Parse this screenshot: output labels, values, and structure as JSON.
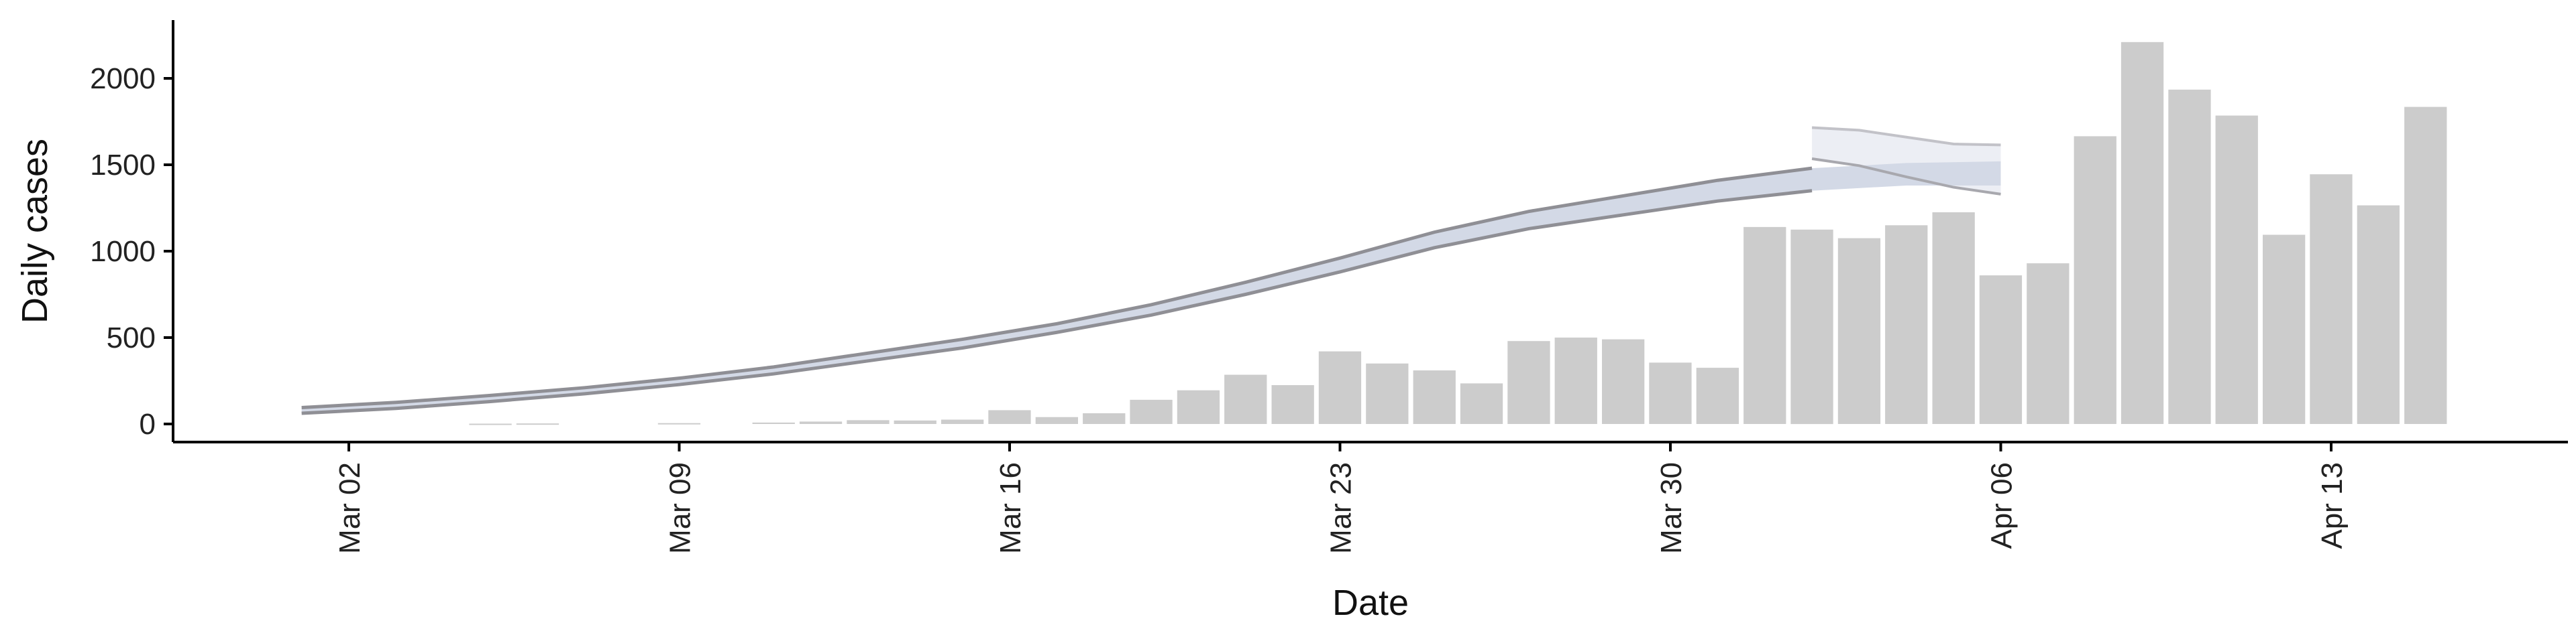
{
  "chart_data": {
    "type": "bar",
    "title": "",
    "xlabel": "Date",
    "ylabel": "Daily cases",
    "x_ticks": [
      {
        "date": "2020-03-02",
        "label": "Mar 02"
      },
      {
        "date": "2020-03-09",
        "label": "Mar 09"
      },
      {
        "date": "2020-03-16",
        "label": "Mar 16"
      },
      {
        "date": "2020-03-23",
        "label": "Mar 23"
      },
      {
        "date": "2020-03-30",
        "label": "Mar 30"
      },
      {
        "date": "2020-04-06",
        "label": "Apr 06"
      },
      {
        "date": "2020-04-13",
        "label": "Apr 13"
      }
    ],
    "y_ticks": [
      0,
      500,
      1000,
      1500,
      2000
    ],
    "xlim": [
      "2020-02-26",
      "2020-04-20"
    ],
    "ylim": [
      -100,
      2330
    ],
    "grid": false,
    "colors": {
      "bars": "#cccccc",
      "band_outer": "#eceef4",
      "band_inner": "#d3d9e6",
      "line_upper": "#8f8f95",
      "line_lower": "#8f8f95",
      "line_upper_forecast": "#c2c2c8",
      "line_lower_forecast": "#a8a8ae",
      "axis": "#000000"
    },
    "bars": [
      {
        "date": "2020-03-05",
        "value": 2
      },
      {
        "date": "2020-03-06",
        "value": 3
      },
      {
        "date": "2020-03-09",
        "value": 5
      },
      {
        "date": "2020-03-11",
        "value": 8
      },
      {
        "date": "2020-03-12",
        "value": 14
      },
      {
        "date": "2020-03-13",
        "value": 22
      },
      {
        "date": "2020-03-14",
        "value": 20
      },
      {
        "date": "2020-03-15",
        "value": 25
      },
      {
        "date": "2020-03-16",
        "value": 80
      },
      {
        "date": "2020-03-17",
        "value": 40
      },
      {
        "date": "2020-03-18",
        "value": 62
      },
      {
        "date": "2020-03-19",
        "value": 140
      },
      {
        "date": "2020-03-20",
        "value": 195
      },
      {
        "date": "2020-03-21",
        "value": 285
      },
      {
        "date": "2020-03-22",
        "value": 225
      },
      {
        "date": "2020-03-23",
        "value": 420
      },
      {
        "date": "2020-03-24",
        "value": 350
      },
      {
        "date": "2020-03-25",
        "value": 310
      },
      {
        "date": "2020-03-26",
        "value": 235
      },
      {
        "date": "2020-03-27",
        "value": 480
      },
      {
        "date": "2020-03-28",
        "value": 500
      },
      {
        "date": "2020-03-29",
        "value": 490
      },
      {
        "date": "2020-03-30",
        "value": 355
      },
      {
        "date": "2020-03-31",
        "value": 325
      },
      {
        "date": "2020-04-01",
        "value": 1140
      },
      {
        "date": "2020-04-02",
        "value": 1125
      },
      {
        "date": "2020-04-03",
        "value": 1075
      },
      {
        "date": "2020-04-04",
        "value": 1150
      },
      {
        "date": "2020-04-05",
        "value": 1225
      },
      {
        "date": "2020-04-06",
        "value": 860
      },
      {
        "date": "2020-04-07",
        "value": 930
      },
      {
        "date": "2020-04-08",
        "value": 1665
      },
      {
        "date": "2020-04-09",
        "value": 2210
      },
      {
        "date": "2020-04-10",
        "value": 1935
      },
      {
        "date": "2020-04-11",
        "value": 1785
      },
      {
        "date": "2020-04-12",
        "value": 1095
      },
      {
        "date": "2020-04-13",
        "value": 1445
      },
      {
        "date": "2020-04-14",
        "value": 1265
      },
      {
        "date": "2020-04-15",
        "value": 1835
      }
    ],
    "estimate_band": {
      "series": [
        {
          "date": "2020-03-01",
          "upper": 95,
          "lower": 62
        },
        {
          "date": "2020-03-03",
          "upper": 125,
          "lower": 90
        },
        {
          "date": "2020-03-05",
          "upper": 165,
          "lower": 130
        },
        {
          "date": "2020-03-07",
          "upper": 210,
          "lower": 175
        },
        {
          "date": "2020-03-09",
          "upper": 265,
          "lower": 228
        },
        {
          "date": "2020-03-11",
          "upper": 330,
          "lower": 290
        },
        {
          "date": "2020-03-13",
          "upper": 410,
          "lower": 365
        },
        {
          "date": "2020-03-15",
          "upper": 490,
          "lower": 440
        },
        {
          "date": "2020-03-17",
          "upper": 580,
          "lower": 530
        },
        {
          "date": "2020-03-19",
          "upper": 690,
          "lower": 630
        },
        {
          "date": "2020-03-21",
          "upper": 820,
          "lower": 750
        },
        {
          "date": "2020-03-23",
          "upper": 960,
          "lower": 880
        },
        {
          "date": "2020-03-25",
          "upper": 1110,
          "lower": 1020
        },
        {
          "date": "2020-03-27",
          "upper": 1230,
          "lower": 1130
        },
        {
          "date": "2020-03-29",
          "upper": 1320,
          "lower": 1210
        },
        {
          "date": "2020-03-31",
          "upper": 1410,
          "lower": 1290
        },
        {
          "date": "2020-04-02",
          "upper": 1480,
          "lower": 1350
        },
        {
          "date": "2020-04-04",
          "upper": 1510,
          "lower": 1380
        },
        {
          "date": "2020-04-06",
          "upper": 1520,
          "lower": 1380
        }
      ],
      "forecast_start": "2020-04-02",
      "forecast_outer": [
        {
          "date": "2020-04-02",
          "upper": 1715,
          "lower": 1535
        },
        {
          "date": "2020-04-03",
          "upper": 1700,
          "lower": 1495
        },
        {
          "date": "2020-04-04",
          "upper": 1660,
          "lower": 1430
        },
        {
          "date": "2020-04-05",
          "upper": 1620,
          "lower": 1370
        },
        {
          "date": "2020-04-06",
          "upper": 1615,
          "lower": 1330
        }
      ]
    }
  }
}
